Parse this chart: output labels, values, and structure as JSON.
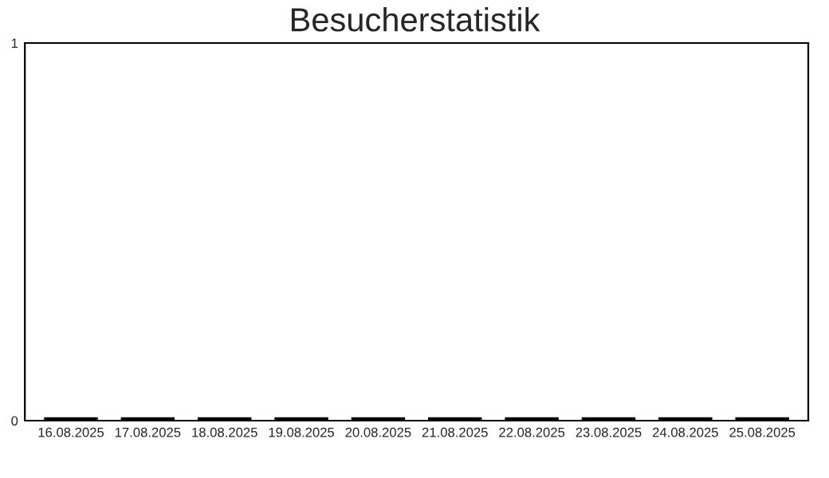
{
  "chart_data": {
    "type": "bar",
    "title": "Besucherstatistik",
    "categories": [
      "16.08.2025",
      "17.08.2025",
      "18.08.2025",
      "19.08.2025",
      "20.08.2025",
      "21.08.2025",
      "22.08.2025",
      "23.08.2025",
      "24.08.2025",
      "25.08.2025"
    ],
    "values": [
      0,
      0,
      0,
      0,
      0,
      0,
      0,
      0,
      0,
      0
    ],
    "color": "#000000",
    "ylim": [
      0,
      1
    ],
    "yticks": [
      0,
      1
    ],
    "grid": false
  }
}
